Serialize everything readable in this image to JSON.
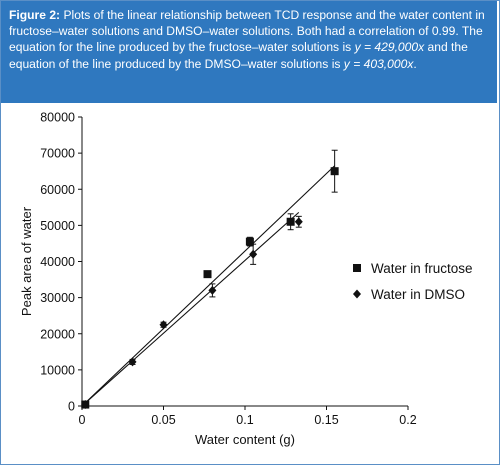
{
  "caption": {
    "label": "Figure 2:",
    "text1": " Plots of the linear relationship between TCD response and the water content in fructose–water solutions and DMSO–water solutions. Both had a correlation of 0.99. The equation for the line produced by the fructose–water solutions is ",
    "eq1": "y = 429,000x",
    "text2": " and the equation of the line produced by the DMSO–water solutions is ",
    "eq2": "y = 403,000x",
    "text3": "."
  },
  "chart_data": {
    "type": "scatter",
    "xlabel": "Water content (g)",
    "ylabel": "Peak area of water",
    "xlim": [
      0,
      0.2
    ],
    "ylim": [
      0,
      80000
    ],
    "x_ticks": [
      "0",
      "0.05",
      "0.1",
      "0.15",
      "0.2"
    ],
    "y_ticks": [
      "0",
      "10000",
      "20000",
      "30000",
      "40000",
      "50000",
      "60000",
      "70000",
      "80000"
    ],
    "grid": false,
    "legend_position": "right",
    "series": [
      {
        "name": "Water in fructose",
        "marker": "square",
        "slope": 429000,
        "points": [
          {
            "x": 0.002,
            "y": 400,
            "err": 0
          },
          {
            "x": 0.077,
            "y": 36500,
            "err": 800
          },
          {
            "x": 0.103,
            "y": 45500,
            "err": 1200
          },
          {
            "x": 0.128,
            "y": 51000,
            "err": 2200
          },
          {
            "x": 0.155,
            "y": 65000,
            "err": 5800
          }
        ]
      },
      {
        "name": "Water in DMSO",
        "marker": "diamond",
        "slope": 403000,
        "points": [
          {
            "x": 0.002,
            "y": 400,
            "err": 0
          },
          {
            "x": 0.031,
            "y": 12200,
            "err": 700
          },
          {
            "x": 0.05,
            "y": 22500,
            "err": 700
          },
          {
            "x": 0.08,
            "y": 32000,
            "err": 1800
          },
          {
            "x": 0.105,
            "y": 42000,
            "err": 2800
          },
          {
            "x": 0.133,
            "y": 51000,
            "err": 1500
          }
        ]
      }
    ]
  }
}
